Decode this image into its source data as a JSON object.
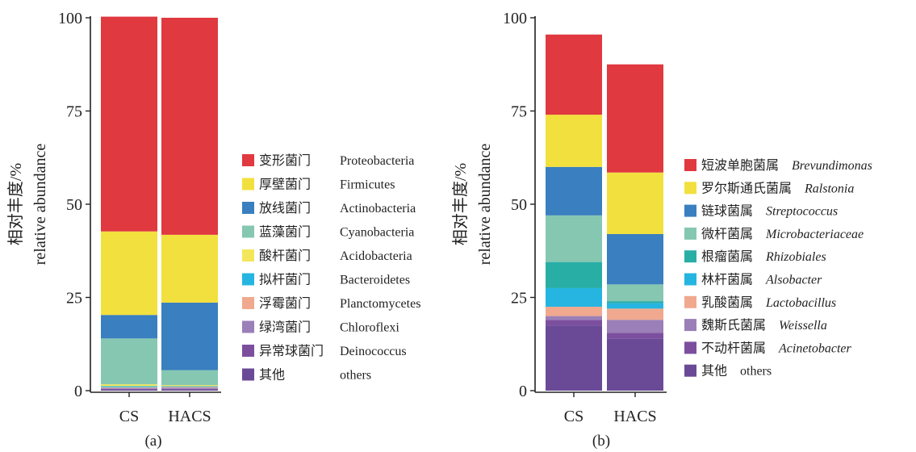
{
  "panels": [
    {
      "label": "(a)",
      "ylabel_line1": "相对丰度/%",
      "ylabel_line2": "relative abundance",
      "yticks": [
        "0",
        "25",
        "50",
        "75",
        "100"
      ],
      "categories": [
        "CS",
        "HACS"
      ]
    },
    {
      "label": "(b)",
      "ylabel_line1": "相对丰度/%",
      "ylabel_line2": "relative abundance",
      "yticks": [
        "0",
        "25",
        "50",
        "75",
        "100"
      ],
      "categories": [
        "CS",
        "HACS"
      ]
    }
  ],
  "chart_data": [
    {
      "type": "bar",
      "stacked": true,
      "ylim": [
        0,
        100
      ],
      "categories": [
        "CS",
        "HACS"
      ],
      "series": [
        {
          "name": "其他",
          "latin": "others",
          "italic": false,
          "color": "#6a4a97",
          "values": [
            0.3,
            0.3
          ]
        },
        {
          "name": "异常球菌门",
          "latin": "Deinococcus",
          "italic": false,
          "color": "#7c4f9e",
          "values": [
            0.2,
            0.2
          ]
        },
        {
          "name": "绿湾菌门",
          "latin": "Chloroflexi",
          "italic": false,
          "color": "#9b7fb8",
          "values": [
            0.2,
            0.3
          ]
        },
        {
          "name": "浮霉菌门",
          "latin": "Planctomycetes",
          "italic": false,
          "color": "#f0a98f",
          "values": [
            0.2,
            0.2
          ]
        },
        {
          "name": "拟杆菌门",
          "latin": "Bacteroidetes",
          "italic": false,
          "color": "#25b5e0",
          "values": [
            0.3,
            0.2
          ]
        },
        {
          "name": "酸杆菌门",
          "latin": "Acidobacteria",
          "italic": false,
          "color": "#f3e65a",
          "values": [
            0.5,
            0.3
          ]
        },
        {
          "name": "蓝藻菌门",
          "latin": "Cyanobacteria",
          "italic": false,
          "color": "#86c7b2",
          "values": [
            12.3,
            4.0
          ]
        },
        {
          "name": "放线菌门",
          "latin": "Actinobacteria",
          "italic": false,
          "color": "#3a7fbf",
          "values": [
            6.3,
            18.1
          ]
        },
        {
          "name": "厚壁菌门",
          "latin": "Firmicutes",
          "italic": false,
          "color": "#f2e03e",
          "values": [
            22.4,
            18.2
          ]
        },
        {
          "name": "变形菌门",
          "latin": "Proteobacteria",
          "italic": false,
          "color": "#e0393f",
          "values": [
            57.6,
            58.2
          ]
        }
      ]
    },
    {
      "type": "bar",
      "stacked": true,
      "ylim": [
        0,
        100
      ],
      "categories": [
        "CS",
        "HACS"
      ],
      "series": [
        {
          "name": "其他",
          "latin": "others",
          "italic": false,
          "color": "#6a4a97",
          "values": [
            17.5,
            14.0
          ]
        },
        {
          "name": "不动杆菌属",
          "latin": "Acinetobacter",
          "italic": true,
          "color": "#7c4f9e",
          "values": [
            1.5,
            1.5
          ]
        },
        {
          "name": "魏斯氏菌属",
          "latin": "Weissella",
          "italic": true,
          "color": "#9b7fb8",
          "values": [
            1.0,
            3.5
          ]
        },
        {
          "name": "乳酸菌属",
          "latin": "Lactobacillus",
          "italic": true,
          "color": "#f0a98f",
          "values": [
            2.5,
            3.0
          ]
        },
        {
          "name": "林杆菌属",
          "latin": "Alsobacter",
          "italic": true,
          "color": "#25b5e0",
          "values": [
            5.0,
            1.5
          ]
        },
        {
          "name": "根瘤菌属",
          "latin": "Rhizobiales",
          "italic": true,
          "color": "#29aea6",
          "values": [
            7.0,
            0.5
          ]
        },
        {
          "name": "微杆菌属",
          "latin": "Microbacteriaceae",
          "italic": true,
          "color": "#86c7b2",
          "values": [
            12.5,
            4.5
          ]
        },
        {
          "name": "链球菌属",
          "latin": "Streptococcus",
          "italic": true,
          "color": "#3a7fbf",
          "values": [
            13.0,
            13.5
          ]
        },
        {
          "name": "罗尔斯通氏菌属",
          "latin": "Ralstonia",
          "italic": true,
          "color": "#f2e03e",
          "values": [
            14.0,
            16.5
          ]
        },
        {
          "name": "短波单胞菌属",
          "latin": "Brevundimonas",
          "italic": true,
          "color": "#e0393f",
          "values": [
            21.5,
            29.0
          ]
        }
      ]
    }
  ]
}
